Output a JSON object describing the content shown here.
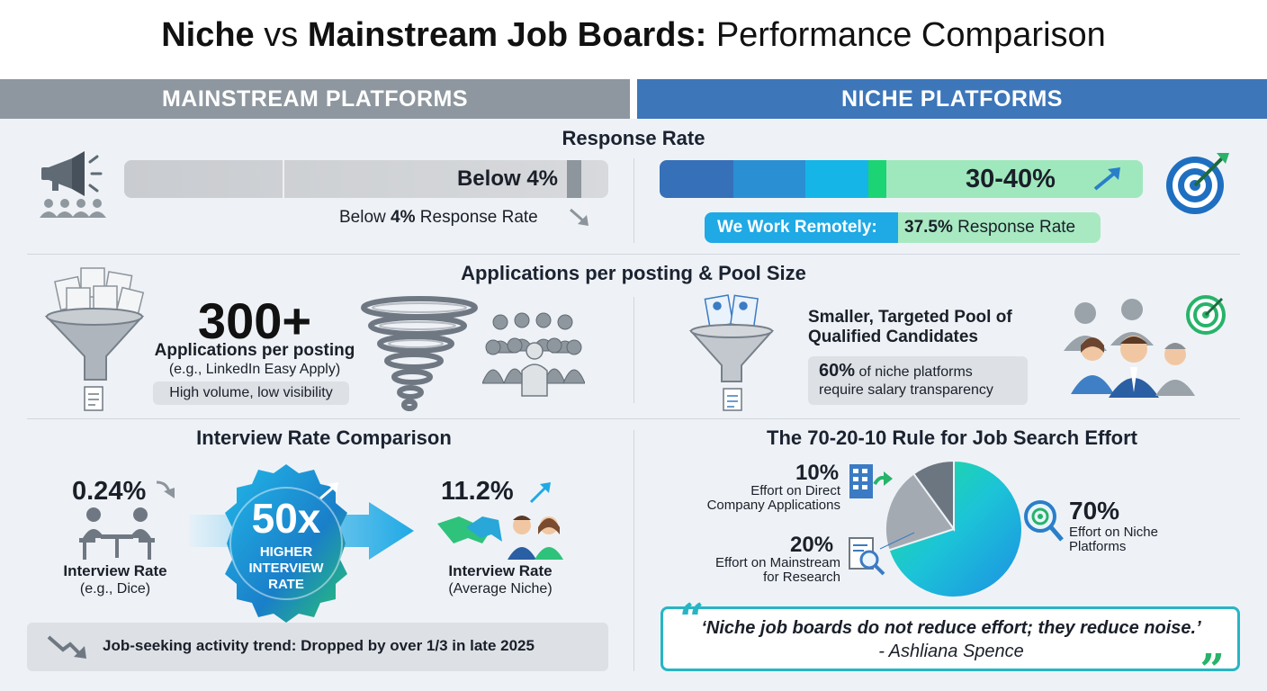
{
  "title": {
    "niche": "Niche",
    "vs": "vs",
    "mainstream": "Mainstream Job Boards:",
    "rest": "Performance Comparison"
  },
  "headers": {
    "left": "MAINSTREAM PLATFORMS",
    "right": "NICHE PLATFORMS"
  },
  "response_rate": {
    "title": "Response Rate",
    "mainstream_bar": "Below 4%",
    "mainstream_note_pre": "Below",
    "mainstream_note_bold": "4%",
    "mainstream_note_post": "Response Rate",
    "niche_bar": "30-40%",
    "remote_label": "We Work Remotely:",
    "remote_value": "37.5%",
    "remote_suffix": "Response Rate"
  },
  "applications": {
    "title": "Applications per posting & Pool Size",
    "big_number": "300+",
    "big_label": "Applications per posting",
    "big_example": "(e.g., LinkedIn Easy Apply)",
    "volume_note": "High volume, low visibility",
    "niche_heading_1": "Smaller, Targeted Pool of",
    "niche_heading_2": "Qualified Candidates",
    "salary_pct": "60%",
    "salary_line1": "of niche platforms",
    "salary_line2": "require salary transparency"
  },
  "interview": {
    "title": "Interview Rate Comparison",
    "mainstream_value": "0.24%",
    "mainstream_label": "Interview Rate",
    "mainstream_example": "(e.g., Dice)",
    "multiplier": "50x",
    "multiplier_line1": "HIGHER",
    "multiplier_line2": "INTERVIEW",
    "multiplier_line3": "RATE",
    "niche_value": "11.2%",
    "niche_label": "Interview Rate",
    "niche_example": "(Average Niche)",
    "trend": "Job-seeking activity trend: Dropped by over 1/3 in late 2025"
  },
  "rule": {
    "title": "The 70-20-10 Rule for Job Search Effort",
    "direct_pct": "10%",
    "direct_line1": "Effort on Direct",
    "direct_line2": "Company Applications",
    "mainstream_pct": "20%",
    "mainstream_line1": "Effort on Mainstream",
    "mainstream_line2": "for Research",
    "niche_pct": "70%",
    "niche_line1": "Effort on Niche",
    "niche_line2": "Platforms"
  },
  "chart_data": {
    "type": "pie",
    "categories": [
      "Effort on Niche Platforms",
      "Effort on Mainstream for Research",
      "Effort on Direct Company Applications"
    ],
    "values": [
      70,
      20,
      10
    ],
    "colors": [
      "#22c3d6",
      "#a3aab2",
      "#6c7680"
    ]
  },
  "quote": {
    "text": "‘Niche job boards do not reduce effort; they reduce noise.’",
    "author": "- Ashliana Spence"
  },
  "colors": {
    "mainstream": "#8e979f",
    "niche": "#3d76b9",
    "accent_green": "#2fd37a",
    "accent_cyan": "#1fa9e5"
  },
  "icons": [
    "megaphone-icon",
    "crowd-icon",
    "target-icon",
    "funnel-icon",
    "document-icon",
    "tornado-icon",
    "people-icon",
    "handshake-icon",
    "building-icon",
    "magnifier-icon",
    "trend-down-icon",
    "trend-up-icon"
  ]
}
